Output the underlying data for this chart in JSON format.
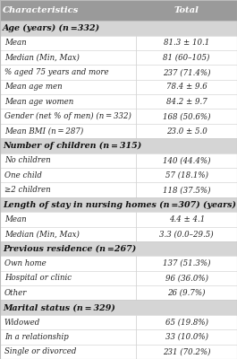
{
  "header": [
    "Characteristics",
    "Total"
  ],
  "header_bg": "#9a9a9a",
  "header_fg": "#ffffff",
  "section_bg": "#d5d5d5",
  "row_bg": "#ffffff",
  "border_color": "#bbbbbb",
  "line_color": "#cccccc",
  "rows": [
    {
      "type": "section",
      "label": "Age (years) (n =332)"
    },
    {
      "type": "data",
      "label": "Mean",
      "value": "81.3 ± 10.1"
    },
    {
      "type": "data",
      "label": "Median (Min, Max)",
      "value": "81 (60–105)"
    },
    {
      "type": "data",
      "label": "% aged 75 years and more",
      "value": "237 (71.4%)"
    },
    {
      "type": "data",
      "label": "Mean age men",
      "value": "78.4 ± 9.6"
    },
    {
      "type": "data",
      "label": "Mean age women",
      "value": "84.2 ± 9.7"
    },
    {
      "type": "data",
      "label": "Gender (net % of men) (n = 332)",
      "value": "168 (50.6%)"
    },
    {
      "type": "data",
      "label": "Mean BMI (n = 287)",
      "value": "23.0 ± 5.0"
    },
    {
      "type": "section",
      "label": "Number of children (n = 315)"
    },
    {
      "type": "data",
      "label": "No children",
      "value": "140 (44.4%)"
    },
    {
      "type": "data",
      "label": "One child",
      "value": "57 (18.1%)"
    },
    {
      "type": "data",
      "label": "≥2 children",
      "value": "118 (37.5%)"
    },
    {
      "type": "section",
      "label": "Length of stay in nursing homes (n =307) (years)"
    },
    {
      "type": "data",
      "label": "Mean",
      "value": "4.4 ± 4.1"
    },
    {
      "type": "data",
      "label": "Median (Min, Max)",
      "value": "3.3 (0.0–29.5)"
    },
    {
      "type": "section",
      "label": "Previous residence (n =267)"
    },
    {
      "type": "data",
      "label": "Own home",
      "value": "137 (51.3%)"
    },
    {
      "type": "data",
      "label": "Hospital or clinic",
      "value": "96 (36.0%)"
    },
    {
      "type": "data",
      "label": "Other",
      "value": "26 (9.7%)"
    },
    {
      "type": "section",
      "label": "Marital status (n = 329)"
    },
    {
      "type": "data",
      "label": "Widowed",
      "value": "65 (19.8%)"
    },
    {
      "type": "data",
      "label": "In a relationship",
      "value": "33 (10.0%)"
    },
    {
      "type": "data",
      "label": "Single or divorced",
      "value": "231 (70.2%)"
    }
  ],
  "col_split": 0.575,
  "fig_width": 2.65,
  "fig_height": 4.0,
  "dpi": 100,
  "header_fontsize": 7.2,
  "section_fontsize": 6.8,
  "data_fontsize": 6.2
}
